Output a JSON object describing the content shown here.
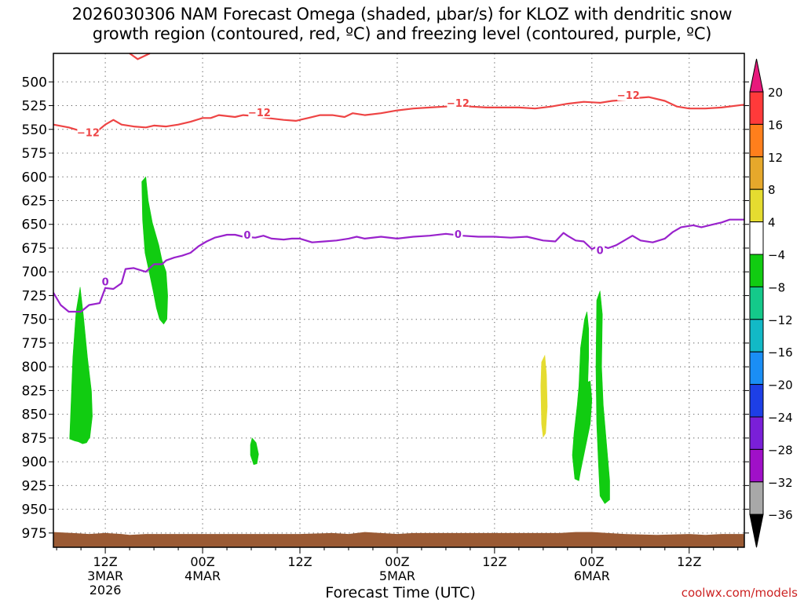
{
  "chart_data": {
    "type": "heatmap",
    "title_lines": [
      "2026030306 NAM Forecast Omega (shaded, μbar/s) for KLOZ with dendritic snow",
      "growth region (contoured, red, ºC) and freezing level (contoured, purple, ºC)"
    ],
    "xlabel": "Forecast Time (UTC)",
    "x_unit": "hours since 2026-03-03 00Z",
    "x_ticks": [
      {
        "hour": 12,
        "label": [
          "12Z",
          "3MAR",
          "2026"
        ]
      },
      {
        "hour": 24,
        "label": [
          "00Z",
          "4MAR"
        ]
      },
      {
        "hour": 36,
        "label": [
          "12Z"
        ]
      },
      {
        "hour": 48,
        "label": [
          "00Z",
          "5MAR"
        ]
      },
      {
        "hour": 60,
        "label": [
          "12Z"
        ]
      },
      {
        "hour": 72,
        "label": [
          "00Z",
          "6MAR"
        ]
      },
      {
        "hour": 84,
        "label": [
          "12Z"
        ]
      }
    ],
    "xlim": [
      5.6,
      90.8
    ],
    "ylabel": "",
    "y_ticks": [
      500,
      525,
      550,
      575,
      600,
      625,
      650,
      675,
      700,
      725,
      750,
      775,
      800,
      825,
      850,
      875,
      900,
      925,
      950,
      975
    ],
    "ylim": [
      470,
      990
    ],
    "grid": true,
    "colorbar": {
      "labels": [
        "20",
        "16",
        "12",
        "8",
        "4",
        "−4",
        "−8",
        "−12",
        "−16",
        "−20",
        "−24",
        "−28",
        "−32",
        "−36"
      ],
      "colors": [
        "#ff3a3a",
        "#ff7f1c",
        "#e6a82b",
        "#e5dc30",
        "#ffffff",
        "#11cc11",
        "#14c98a",
        "#12b9c6",
        "#1a8ef5",
        "#1d3fe6",
        "#7a1fd8",
        "#a010c8",
        "#a8a8a8"
      ],
      "max_arrow_color": "#e8197c",
      "min_arrow_color": "#000000"
    },
    "dgz_contour": {
      "value": -12,
      "color": "#ee4444",
      "labels": [
        {
          "text": "−12",
          "hour": 9.9,
          "p": 553
        },
        {
          "text": "−12",
          "hour": 31,
          "p": 532
        },
        {
          "text": "−12",
          "hour": 55.5,
          "p": 522
        },
        {
          "text": "−12",
          "hour": 76.5,
          "p": 514
        }
      ],
      "points": [
        [
          5.6,
          545
        ],
        [
          7.5,
          548
        ],
        [
          9.5,
          553
        ],
        [
          11,
          552
        ],
        [
          12,
          545
        ],
        [
          13,
          540
        ],
        [
          14,
          545
        ],
        [
          15.5,
          547
        ],
        [
          17,
          548
        ],
        [
          18,
          546
        ],
        [
          19.5,
          547
        ],
        [
          21,
          545
        ],
        [
          22.5,
          542
        ],
        [
          24,
          538
        ],
        [
          25,
          538
        ],
        [
          26,
          535
        ],
        [
          28,
          537
        ],
        [
          29,
          535
        ],
        [
          30.5,
          536
        ],
        [
          32,
          538
        ],
        [
          34,
          540
        ],
        [
          35.5,
          541
        ],
        [
          37,
          538
        ],
        [
          38.5,
          535
        ],
        [
          40,
          535
        ],
        [
          41.5,
          537
        ],
        [
          42.5,
          533
        ],
        [
          44,
          535
        ],
        [
          46,
          533
        ],
        [
          48,
          530
        ],
        [
          50,
          528
        ],
        [
          52,
          527
        ],
        [
          54,
          526
        ],
        [
          55.5,
          526
        ],
        [
          57,
          526
        ],
        [
          59,
          527
        ],
        [
          61,
          527
        ],
        [
          63,
          527
        ],
        [
          65,
          528
        ],
        [
          67,
          526
        ],
        [
          69,
          523
        ],
        [
          71,
          521
        ],
        [
          73,
          522
        ],
        [
          74.5,
          520
        ],
        [
          76,
          519
        ],
        [
          77.5,
          517
        ],
        [
          79,
          516
        ],
        [
          81,
          520
        ],
        [
          82.5,
          526
        ],
        [
          84,
          528
        ],
        [
          86,
          528
        ],
        [
          88,
          527
        ],
        [
          90.8,
          524
        ]
      ]
    },
    "dgz_top_fragment": [
      [
        15,
        470
      ],
      [
        16,
        476
      ],
      [
        17.5,
        470
      ]
    ],
    "freezing_contour": {
      "value": 0,
      "color": "#9922cc",
      "labels": [
        {
          "text": "0",
          "hour": 12,
          "p": 710
        },
        {
          "text": "0",
          "hour": 29.5,
          "p": 661
        },
        {
          "text": "0",
          "hour": 55.5,
          "p": 660
        },
        {
          "text": "0",
          "hour": 73,
          "p": 677
        }
      ],
      "points": [
        [
          5.6,
          722
        ],
        [
          6.5,
          735
        ],
        [
          7.5,
          742
        ],
        [
          9,
          742
        ],
        [
          10,
          735
        ],
        [
          11.3,
          733
        ],
        [
          12,
          717
        ],
        [
          13,
          718
        ],
        [
          14,
          712
        ],
        [
          14.5,
          697
        ],
        [
          15.5,
          696
        ],
        [
          17,
          700
        ],
        [
          18,
          692
        ],
        [
          19,
          692
        ],
        [
          19.5,
          688
        ],
        [
          20.5,
          685
        ],
        [
          21.5,
          683
        ],
        [
          22.5,
          680
        ],
        [
          23.5,
          673
        ],
        [
          24.5,
          668
        ],
        [
          25.5,
          664
        ],
        [
          27,
          661
        ],
        [
          28,
          661
        ],
        [
          29,
          663
        ],
        [
          30.5,
          664
        ],
        [
          31.5,
          662
        ],
        [
          32.5,
          665
        ],
        [
          34,
          666
        ],
        [
          35,
          665
        ],
        [
          36,
          665
        ],
        [
          37.5,
          669
        ],
        [
          39,
          668
        ],
        [
          40.5,
          667
        ],
        [
          42,
          665
        ],
        [
          43,
          663
        ],
        [
          44,
          665
        ],
        [
          46,
          663
        ],
        [
          48,
          665
        ],
        [
          50,
          663
        ],
        [
          52,
          662
        ],
        [
          54,
          660
        ],
        [
          56,
          662
        ],
        [
          58,
          663
        ],
        [
          60,
          663
        ],
        [
          62,
          664
        ],
        [
          64,
          663
        ],
        [
          66,
          667
        ],
        [
          67.5,
          668
        ],
        [
          68.5,
          659
        ],
        [
          69,
          662
        ],
        [
          70,
          667
        ],
        [
          71,
          668
        ],
        [
          72,
          676
        ],
        [
          73,
          672
        ],
        [
          74,
          675
        ],
        [
          75,
          672
        ],
        [
          76,
          667
        ],
        [
          77,
          662
        ],
        [
          78,
          667
        ],
        [
          79.5,
          669
        ],
        [
          81,
          665
        ],
        [
          82,
          658
        ],
        [
          83,
          653
        ],
        [
          84.5,
          651
        ],
        [
          85.5,
          653
        ],
        [
          87,
          650
        ],
        [
          88,
          648
        ],
        [
          89,
          645
        ],
        [
          90.8,
          645
        ]
      ]
    },
    "omega_regions": [
      {
        "name": "green-blob-a",
        "color": "#11cc11",
        "points": [
          [
            7.6,
            876
          ],
          [
            8,
            790
          ],
          [
            8.4,
            742
          ],
          [
            8.9,
            716
          ],
          [
            9.3,
            746
          ],
          [
            9.8,
            790
          ],
          [
            10.3,
            826
          ],
          [
            10.4,
            852
          ],
          [
            10.1,
            874
          ],
          [
            9.7,
            880
          ],
          [
            9.2,
            881
          ],
          [
            8.7,
            879
          ],
          [
            8.2,
            878
          ]
        ]
      },
      {
        "name": "green-blob-b",
        "color": "#11cc11",
        "points": [
          [
            16.5,
            605
          ],
          [
            17,
            600
          ],
          [
            17.3,
            625
          ],
          [
            17.8,
            648
          ],
          [
            18.6,
            672
          ],
          [
            19,
            688
          ],
          [
            19.5,
            700
          ],
          [
            19.7,
            725
          ],
          [
            19.6,
            750
          ],
          [
            19.2,
            755
          ],
          [
            18.7,
            750
          ],
          [
            18.3,
            738
          ],
          [
            17.9,
            720
          ],
          [
            17.4,
            700
          ],
          [
            16.9,
            680
          ],
          [
            16.6,
            645
          ]
        ]
      },
      {
        "name": "green-blob-c",
        "color": "#11cc11",
        "points": [
          [
            30.1,
            875
          ],
          [
            30.6,
            880
          ],
          [
            30.9,
            892
          ],
          [
            30.7,
            902
          ],
          [
            30.3,
            903
          ],
          [
            29.9,
            893
          ],
          [
            29.9,
            882
          ]
        ]
      },
      {
        "name": "yellow-blob-d",
        "color": "#e5dc30",
        "points": [
          [
            65.8,
            795
          ],
          [
            66.2,
            788
          ],
          [
            66.4,
            808
          ],
          [
            66.5,
            842
          ],
          [
            66.3,
            870
          ],
          [
            66,
            874
          ],
          [
            65.8,
            860
          ],
          [
            65.7,
            820
          ]
        ]
      },
      {
        "name": "green-blob-e",
        "color": "#11cc11",
        "points": [
          [
            70.6,
            780
          ],
          [
            71.1,
            750
          ],
          [
            71.4,
            742
          ],
          [
            71.6,
            760
          ],
          [
            71.6,
            790
          ],
          [
            71.5,
            816
          ],
          [
            71.8,
            815
          ],
          [
            72,
            835
          ],
          [
            71.8,
            860
          ],
          [
            71.2,
            885
          ],
          [
            70.6,
            910
          ],
          [
            70.4,
            920
          ],
          [
            69.9,
            918
          ],
          [
            69.6,
            893
          ],
          [
            69.8,
            870
          ],
          [
            70.2,
            840
          ],
          [
            70.4,
            820
          ]
        ]
      },
      {
        "name": "green-blob-f",
        "color": "#11cc11",
        "points": [
          [
            72.6,
            730
          ],
          [
            73,
            720
          ],
          [
            73.3,
            745
          ],
          [
            73.2,
            800
          ],
          [
            73.4,
            840
          ],
          [
            73.8,
            880
          ],
          [
            74.2,
            920
          ],
          [
            74.2,
            940
          ],
          [
            73.6,
            944
          ],
          [
            73,
            936
          ],
          [
            72.8,
            900
          ],
          [
            72.6,
            860
          ],
          [
            72.5,
            800
          ]
        ]
      }
    ],
    "terrain": {
      "color": "#9a5a34",
      "points": [
        [
          5.6,
          974
        ],
        [
          8,
          975
        ],
        [
          10,
          976
        ],
        [
          12,
          975
        ],
        [
          14,
          976
        ],
        [
          15,
          977
        ],
        [
          17,
          976
        ],
        [
          20,
          976
        ],
        [
          24,
          976
        ],
        [
          30,
          976
        ],
        [
          36,
          976
        ],
        [
          40,
          975
        ],
        [
          42,
          976
        ],
        [
          44,
          974
        ],
        [
          46,
          975
        ],
        [
          48,
          976
        ],
        [
          50,
          975
        ],
        [
          52,
          975
        ],
        [
          56,
          975
        ],
        [
          60,
          975
        ],
        [
          64,
          975
        ],
        [
          68,
          975
        ],
        [
          70,
          974
        ],
        [
          72,
          974
        ],
        [
          76,
          976
        ],
        [
          80,
          977
        ],
        [
          84,
          976
        ],
        [
          86,
          977
        ],
        [
          88,
          976
        ],
        [
          90.8,
          976
        ]
      ]
    }
  },
  "credit": "coolwx.com/models"
}
